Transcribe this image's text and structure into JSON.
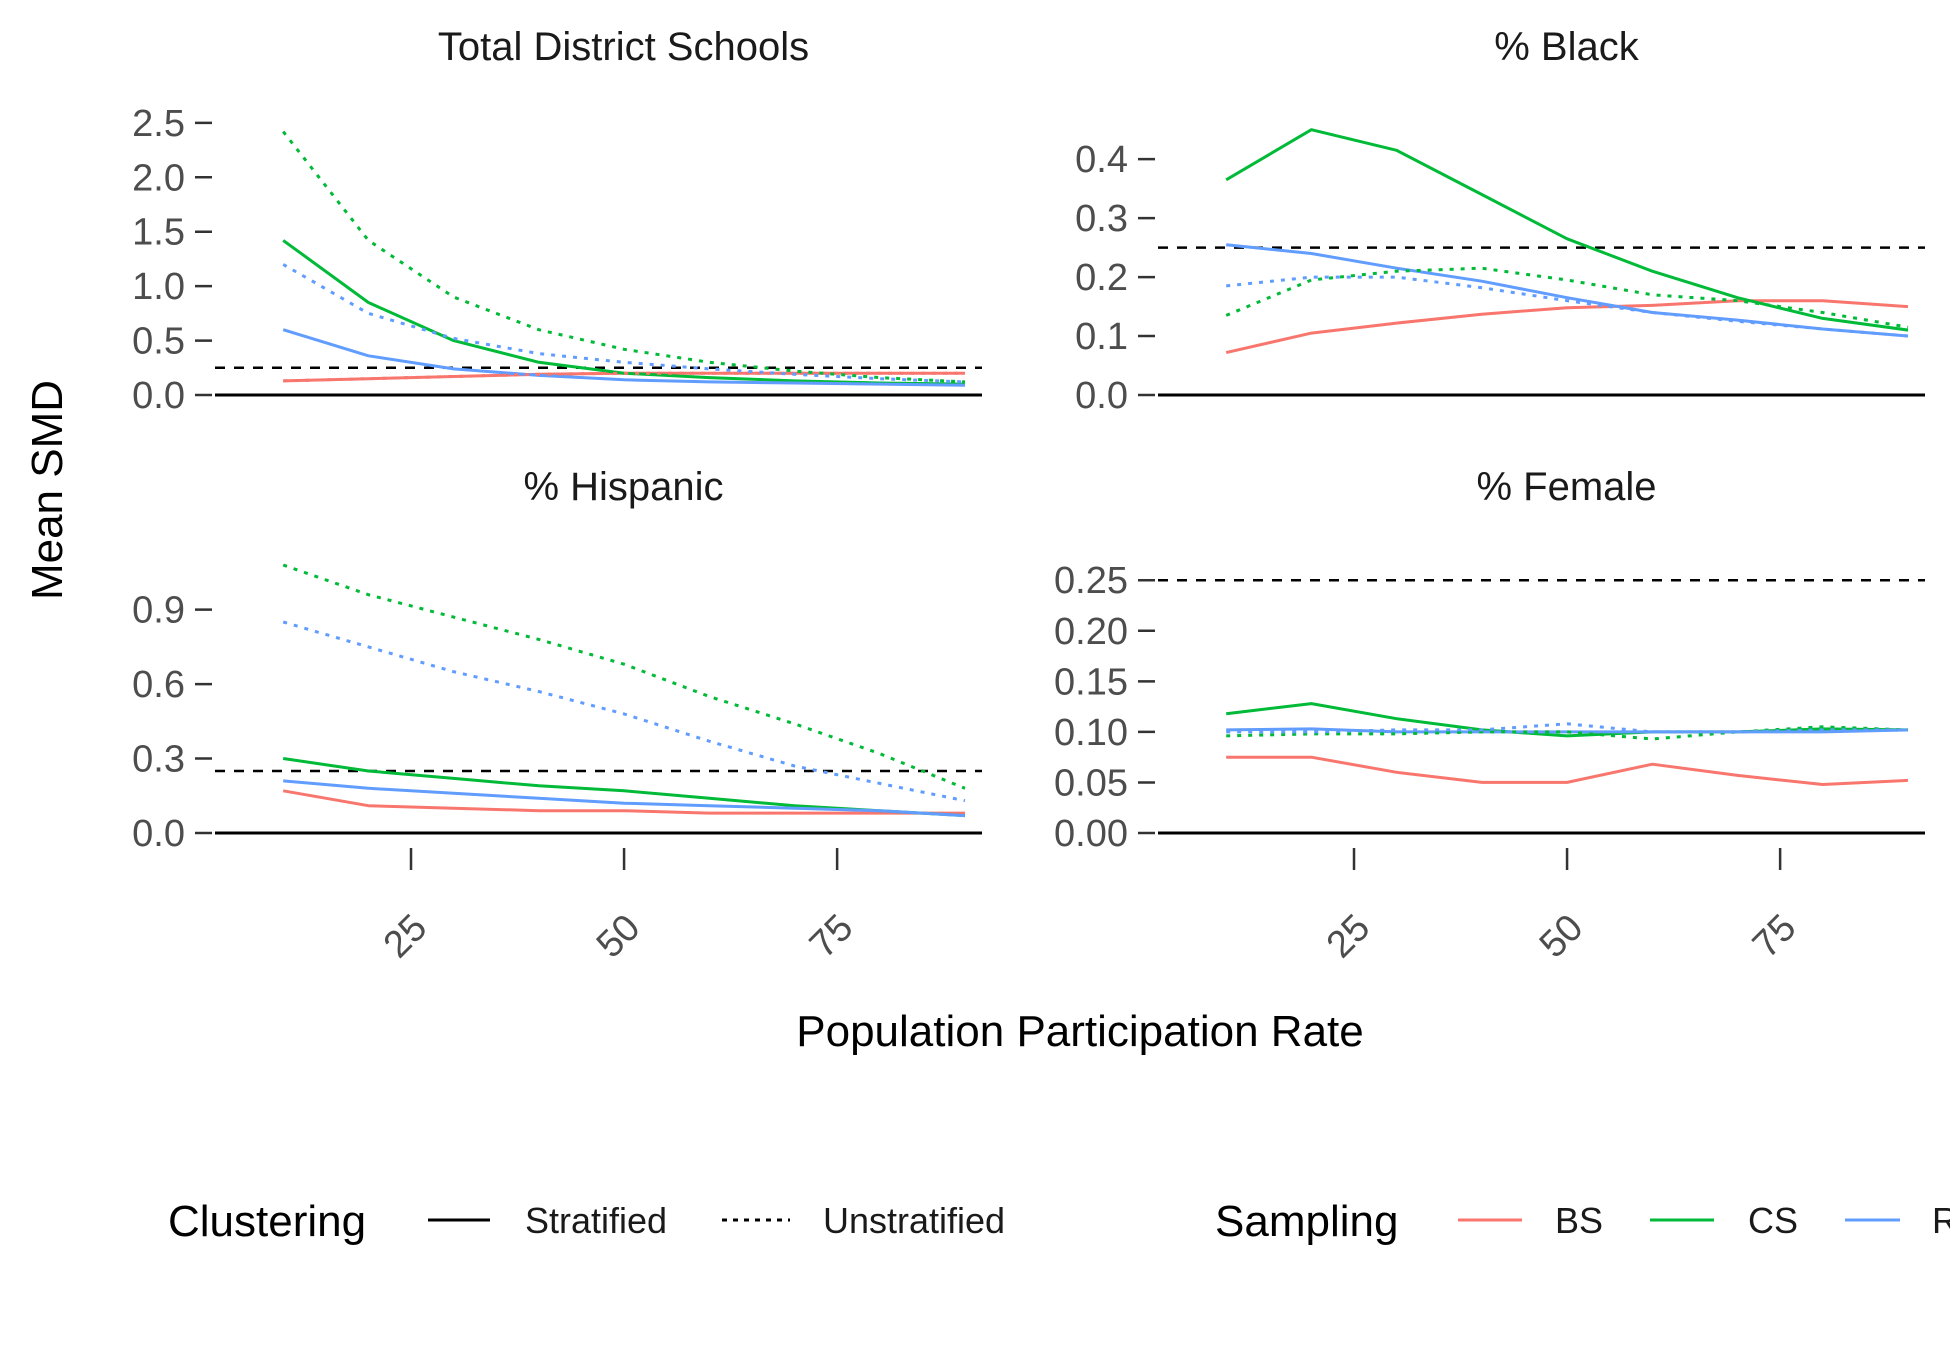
{
  "figure": {
    "xlabel": "Population Participation Rate",
    "ylabel": "Mean SMD"
  },
  "legend": {
    "clustering_title": "Clustering",
    "clustering_items": [
      {
        "label": "Stratified",
        "dash": "solid"
      },
      {
        "label": "Unstratified",
        "dash": "dotted"
      }
    ],
    "sampling_title": "Sampling",
    "sampling_items": [
      {
        "label": "BS",
        "color": "#f8766d"
      },
      {
        "label": "CS",
        "color": "#00ba38"
      },
      {
        "label": "R",
        "color": "#619cff"
      }
    ]
  },
  "chart_data": [
    {
      "type": "line",
      "title": "Total District Schools",
      "xlabel": "Population Participation Rate",
      "ylabel": "Mean SMD",
      "x": [
        10,
        20,
        30,
        40,
        50,
        60,
        70,
        80,
        90
      ],
      "xticks": [
        25,
        50,
        75
      ],
      "xlim": [
        2,
        92
      ],
      "ylim": [
        0,
        2.6
      ],
      "yticks": [
        "0.0",
        "0.5",
        "1.0",
        "1.5",
        "2.0",
        "2.5"
      ],
      "reference_line": 0.25,
      "series": [
        {
          "sampling": "BS",
          "clustering": "Stratified",
          "values": [
            0.13,
            0.15,
            0.17,
            0.19,
            0.2,
            0.2,
            0.2,
            0.2,
            0.2
          ]
        },
        {
          "sampling": "CS",
          "clustering": "Stratified",
          "values": [
            1.42,
            0.85,
            0.5,
            0.3,
            0.2,
            0.16,
            0.13,
            0.11,
            0.1
          ]
        },
        {
          "sampling": "R",
          "clustering": "Stratified",
          "values": [
            0.6,
            0.36,
            0.24,
            0.18,
            0.14,
            0.12,
            0.11,
            0.1,
            0.09
          ]
        },
        {
          "sampling": "BS",
          "clustering": "Unstratified",
          "values": [
            0.13,
            0.15,
            0.17,
            0.19,
            0.2,
            0.2,
            0.2,
            0.2,
            0.2
          ]
        },
        {
          "sampling": "CS",
          "clustering": "Unstratified",
          "values": [
            2.42,
            1.42,
            0.9,
            0.6,
            0.42,
            0.3,
            0.22,
            0.16,
            0.12
          ]
        },
        {
          "sampling": "R",
          "clustering": "Unstratified",
          "values": [
            1.2,
            0.75,
            0.52,
            0.38,
            0.3,
            0.24,
            0.19,
            0.15,
            0.12
          ]
        }
      ]
    },
    {
      "type": "line",
      "title": "% Black",
      "xlabel": "Population Participation Rate",
      "ylabel": "Mean SMD",
      "x": [
        10,
        20,
        30,
        40,
        50,
        60,
        70,
        80,
        90
      ],
      "xticks": [
        25,
        50,
        75
      ],
      "xlim": [
        2,
        92
      ],
      "ylim": [
        0,
        0.48
      ],
      "yticks": [
        "0.0",
        "0.1",
        "0.2",
        "0.3",
        "0.4"
      ],
      "reference_line": 0.25,
      "series": [
        {
          "sampling": "BS",
          "clustering": "Stratified",
          "values": [
            0.072,
            0.105,
            0.122,
            0.137,
            0.148,
            0.152,
            0.16,
            0.16,
            0.15
          ]
        },
        {
          "sampling": "CS",
          "clustering": "Stratified",
          "values": [
            0.365,
            0.45,
            0.415,
            0.34,
            0.265,
            0.21,
            0.165,
            0.13,
            0.11
          ]
        },
        {
          "sampling": "R",
          "clustering": "Stratified",
          "values": [
            0.255,
            0.24,
            0.215,
            0.193,
            0.165,
            0.14,
            0.127,
            0.112,
            0.1
          ]
        },
        {
          "sampling": "CS",
          "clustering": "Unstratified",
          "values": [
            0.135,
            0.195,
            0.21,
            0.215,
            0.195,
            0.17,
            0.16,
            0.14,
            0.115
          ]
        },
        {
          "sampling": "R",
          "clustering": "Unstratified",
          "values": [
            0.185,
            0.2,
            0.2,
            0.182,
            0.16,
            0.14,
            0.125,
            0.112,
            0.1
          ]
        }
      ]
    },
    {
      "type": "line",
      "title": "% Hispanic",
      "xlabel": "Population Participation Rate",
      "ylabel": "Mean SMD",
      "x": [
        10,
        20,
        30,
        40,
        50,
        60,
        70,
        80,
        90
      ],
      "xticks": [
        25,
        50,
        75
      ],
      "xlim": [
        2,
        92
      ],
      "ylim": [
        0,
        1.1
      ],
      "yticks": [
        "0.0",
        "0.3",
        "0.6",
        "0.9"
      ],
      "reference_line": 0.25,
      "series": [
        {
          "sampling": "BS",
          "clustering": "Stratified",
          "values": [
            0.17,
            0.11,
            0.1,
            0.09,
            0.09,
            0.08,
            0.08,
            0.08,
            0.08
          ]
        },
        {
          "sampling": "CS",
          "clustering": "Stratified",
          "values": [
            0.3,
            0.25,
            0.22,
            0.19,
            0.17,
            0.14,
            0.11,
            0.09,
            0.07
          ]
        },
        {
          "sampling": "R",
          "clustering": "Stratified",
          "values": [
            0.21,
            0.18,
            0.16,
            0.14,
            0.12,
            0.11,
            0.1,
            0.09,
            0.07
          ]
        },
        {
          "sampling": "CS",
          "clustering": "Unstratified",
          "values": [
            1.08,
            0.96,
            0.87,
            0.78,
            0.68,
            0.55,
            0.44,
            0.32,
            0.18
          ]
        },
        {
          "sampling": "R",
          "clustering": "Unstratified",
          "values": [
            0.85,
            0.75,
            0.65,
            0.57,
            0.48,
            0.37,
            0.27,
            0.2,
            0.13
          ]
        }
      ]
    },
    {
      "type": "line",
      "title": "% Female",
      "xlabel": "Population Participation Rate",
      "ylabel": "Mean SMD",
      "x": [
        10,
        20,
        30,
        40,
        50,
        60,
        70,
        80,
        90
      ],
      "xticks": [
        25,
        50,
        75
      ],
      "xlim": [
        2,
        92
      ],
      "ylim": [
        0,
        0.27
      ],
      "yticks": [
        "0.00",
        "0.05",
        "0.10",
        "0.15",
        "0.20",
        "0.25"
      ],
      "reference_line": 0.25,
      "series": [
        {
          "sampling": "BS",
          "clustering": "Stratified",
          "values": [
            0.075,
            0.075,
            0.06,
            0.05,
            0.05,
            0.068,
            0.057,
            0.048,
            0.052
          ]
        },
        {
          "sampling": "CS",
          "clustering": "Stratified",
          "values": [
            0.118,
            0.128,
            0.113,
            0.102,
            0.096,
            0.1,
            0.1,
            0.103,
            0.102
          ]
        },
        {
          "sampling": "R",
          "clustering": "Stratified",
          "values": [
            0.102,
            0.103,
            0.1,
            0.1,
            0.1,
            0.1,
            0.1,
            0.1,
            0.102
          ]
        },
        {
          "sampling": "CS",
          "clustering": "Unstratified",
          "values": [
            0.096,
            0.098,
            0.098,
            0.1,
            0.1,
            0.093,
            0.1,
            0.105,
            0.102
          ]
        },
        {
          "sampling": "R",
          "clustering": "Unstratified",
          "values": [
            0.1,
            0.1,
            0.102,
            0.102,
            0.108,
            0.1,
            0.1,
            0.102,
            0.102
          ]
        }
      ]
    }
  ]
}
